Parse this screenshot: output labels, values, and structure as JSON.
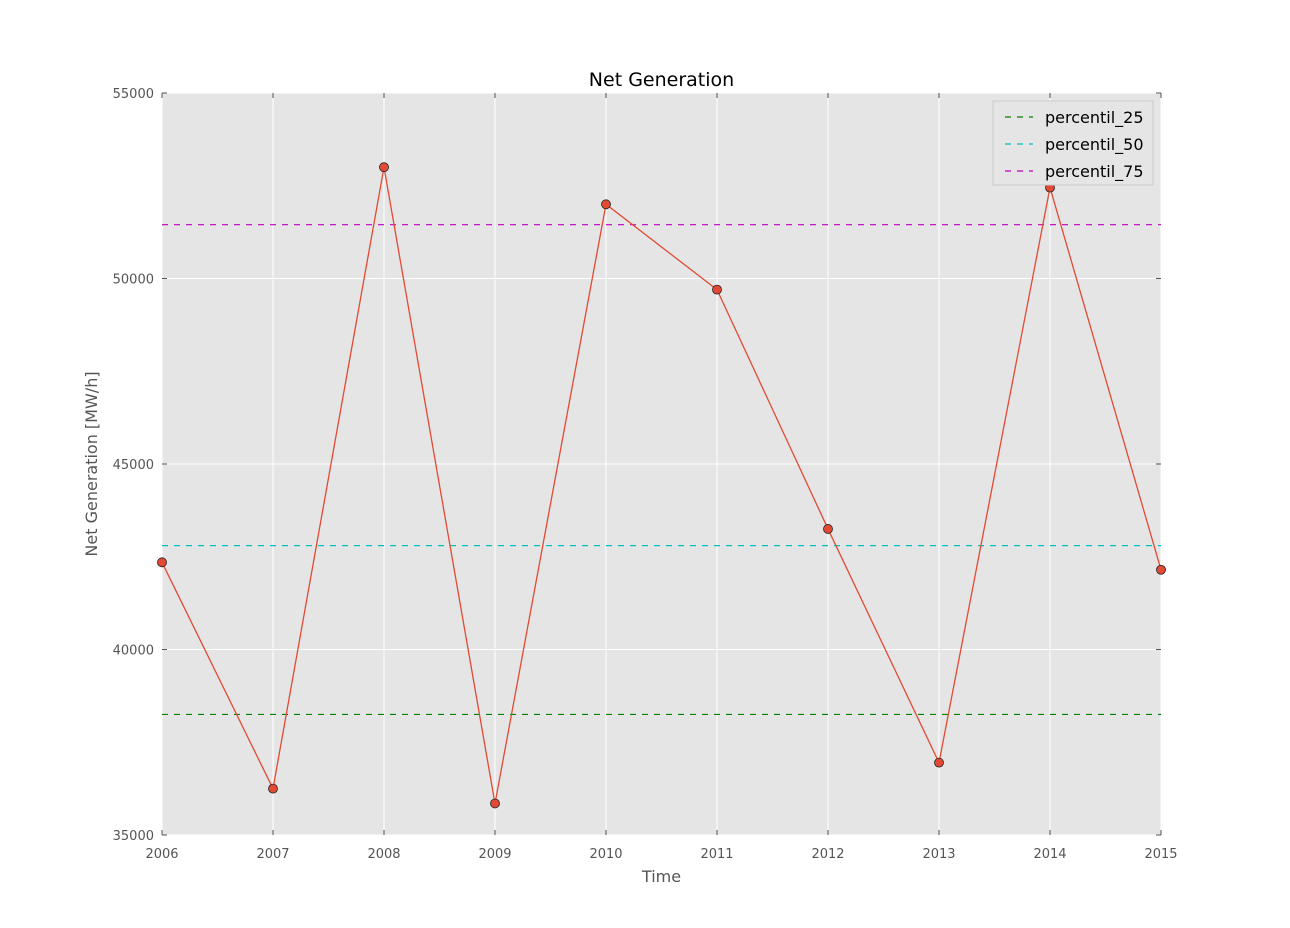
{
  "chart_data": {
    "type": "line",
    "title": "Net Generation",
    "xlabel": "Time",
    "ylabel": "Net Generation [MW/h]",
    "xlim": [
      2006,
      2015
    ],
    "ylim": [
      35000,
      55000
    ],
    "x_ticks": [
      2006,
      2007,
      2008,
      2009,
      2010,
      2011,
      2012,
      2013,
      2014,
      2015
    ],
    "y_ticks": [
      35000,
      40000,
      45000,
      50000,
      55000
    ],
    "grid": true,
    "legend_position": "top-right",
    "series": [
      {
        "x": [
          2006,
          2007,
          2008,
          2009,
          2010,
          2011,
          2012,
          2013,
          2014,
          2015
        ],
        "values": [
          42350,
          36250,
          53000,
          35850,
          52000,
          49700,
          43250,
          36950,
          52450,
          42150
        ],
        "color": "#e24a33",
        "marker": "circle"
      }
    ],
    "reference_lines": [
      {
        "name": "percentil_25",
        "value": 38250,
        "color": "#008000",
        "style": "dashed"
      },
      {
        "name": "percentil_50",
        "value": 42800,
        "color": "#00bfbf",
        "style": "dashed"
      },
      {
        "name": "percentil_75",
        "value": 51450,
        "color": "#bf00bf",
        "style": "dashed"
      }
    ],
    "colors": {
      "plot_background": "#e5e5e5",
      "grid": "#ffffff"
    }
  }
}
